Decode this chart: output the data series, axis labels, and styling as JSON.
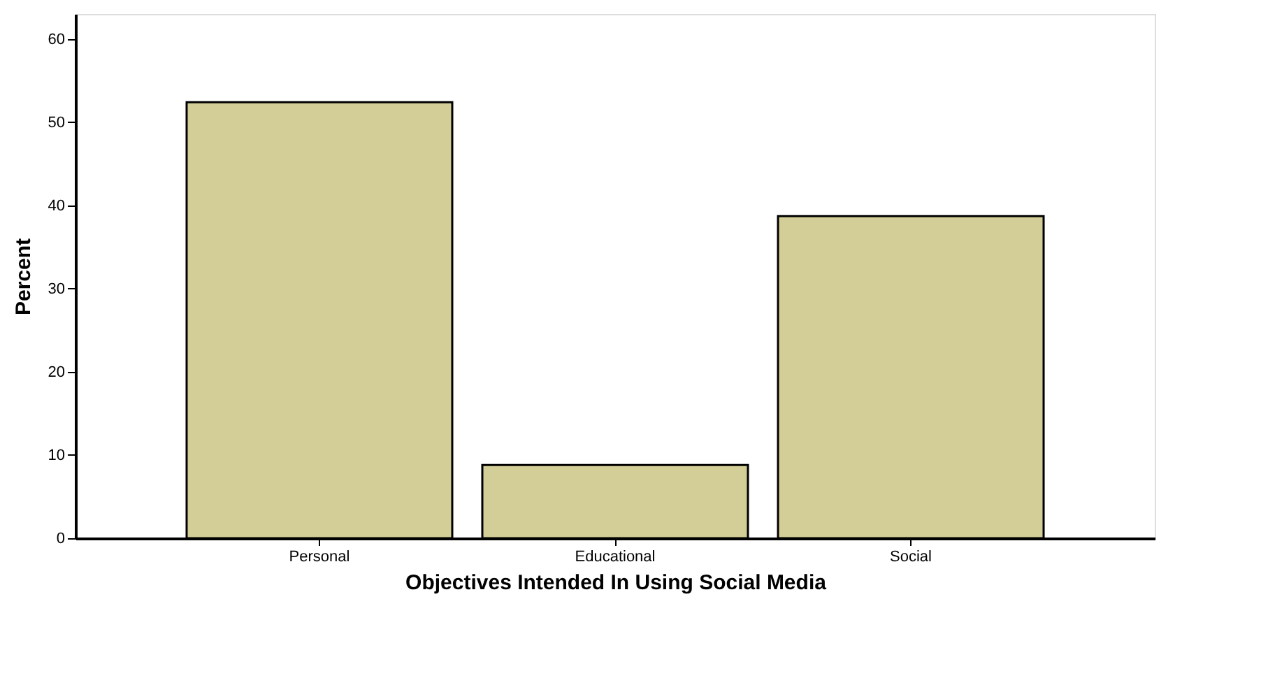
{
  "chart_data": {
    "type": "bar",
    "xlabel": "Objectives Intended In Using Social Media",
    "ylabel": "Percent",
    "categories": [
      "Personal",
      "Educational",
      "Social"
    ],
    "values": [
      52.4,
      8.8,
      38.7
    ],
    "color": "#d3ce97",
    "ylim": [
      0,
      63
    ],
    "yticks": [
      0,
      10,
      20,
      30,
      40,
      50,
      60
    ],
    "grid": false
  }
}
